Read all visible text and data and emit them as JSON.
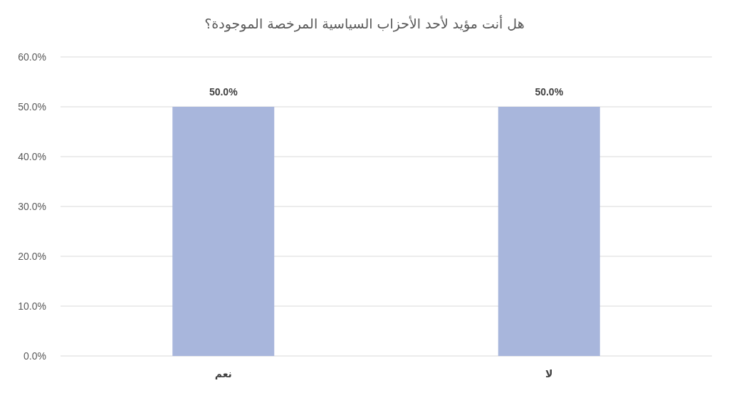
{
  "chart_data": {
    "type": "bar",
    "title": "هل أنت مؤيد لأحد الأحزاب السياسية المرخصة الموجودة؟",
    "categories": [
      "نعم",
      "لا"
    ],
    "values": [
      50,
      50
    ],
    "value_labels": [
      "50.0%",
      "50.0%"
    ],
    "color": "#a8b6dc",
    "ylim": [
      0,
      60
    ],
    "yticks": [
      {
        "value": 0,
        "label": "0.0%"
      },
      {
        "value": 10,
        "label": "10.0%"
      },
      {
        "value": 20,
        "label": "20.0%"
      },
      {
        "value": 30,
        "label": "30.0%"
      },
      {
        "value": 40,
        "label": "40.0%"
      },
      {
        "value": 50,
        "label": "50.0%"
      },
      {
        "value": 60,
        "label": "60.0%"
      }
    ],
    "grid": "y"
  }
}
